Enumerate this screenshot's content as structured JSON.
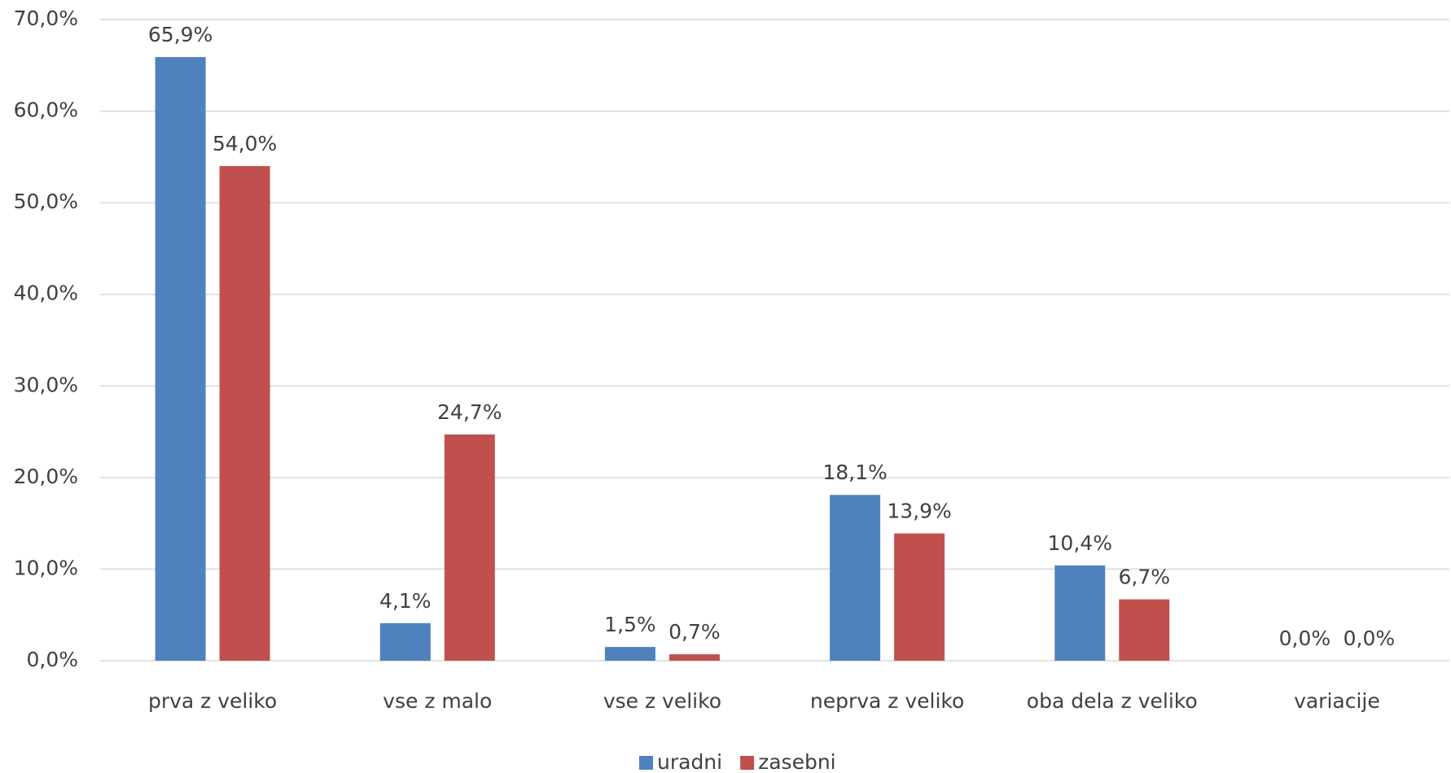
{
  "chart_data": {
    "type": "bar",
    "categories": [
      "prva z veliko",
      "vse z malo",
      "vse z veliko",
      "neprva z veliko",
      "oba dela z veliko",
      "variacije"
    ],
    "series": [
      {
        "name": "uradni",
        "color": "#4f81bd",
        "values": [
          65.9,
          4.1,
          1.5,
          18.1,
          10.4,
          0.0
        ],
        "value_labels": [
          "65,9%",
          "4,1%",
          "1,5%",
          "18,1%",
          "10,4%",
          "0,0%"
        ]
      },
      {
        "name": "zasebni",
        "color": "#c0504d",
        "values": [
          54.0,
          24.7,
          0.7,
          13.9,
          6.7,
          0.0
        ],
        "value_labels": [
          "54,0%",
          "24,7%",
          "0,7%",
          "13,9%",
          "6,7%",
          "0,0%"
        ]
      }
    ],
    "ylim": [
      0,
      70
    ],
    "yticks": [
      {
        "value": 0,
        "label": "0,0%"
      },
      {
        "value": 10,
        "label": "10,0%"
      },
      {
        "value": 20,
        "label": "20,0%"
      },
      {
        "value": 30,
        "label": "30,0%"
      },
      {
        "value": 40,
        "label": "40,0%"
      },
      {
        "value": 50,
        "label": "50,0%"
      },
      {
        "value": 60,
        "label": "60,0%"
      },
      {
        "value": 70,
        "label": "70,0%"
      }
    ],
    "grid": true,
    "legend": "bottom"
  }
}
